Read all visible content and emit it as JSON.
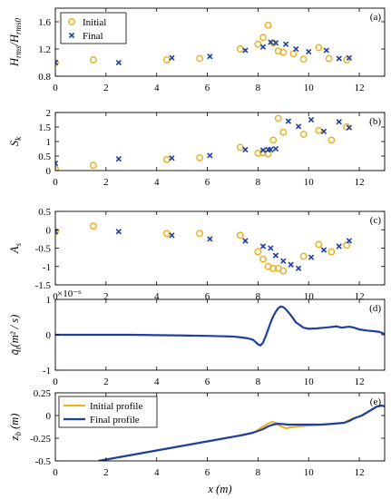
{
  "colors": {
    "initial": "#EDB120",
    "final": "#1F3FA0",
    "axis": "#000000"
  },
  "chart_data": [
    {
      "type": "scatter",
      "panel_label": "(a)",
      "ylabel": "H_rms/H_rms0",
      "xlabel": "",
      "xlim": [
        0,
        13
      ],
      "ylim": [
        0.8,
        1.8
      ],
      "xticks": [
        0,
        2,
        4,
        6,
        8,
        10,
        12
      ],
      "yticks": [
        0.8,
        1.2,
        1.6
      ],
      "ytick_labels": [
        "0.8",
        "1.2",
        "1.6"
      ],
      "legend": "top-left",
      "series": [
        {
          "name": "Initial",
          "marker": "circle",
          "x": [
            0,
            1.5,
            4.4,
            5.7,
            7.3,
            8.0,
            8.2,
            8.4,
            8.6,
            8.8,
            9.0,
            9.4,
            9.8,
            10.4,
            10.8,
            11.5
          ],
          "y": [
            1.0,
            1.04,
            1.04,
            1.06,
            1.2,
            1.27,
            1.37,
            1.55,
            1.29,
            1.17,
            1.15,
            1.13,
            1.05,
            1.22,
            1.06,
            1.04
          ]
        },
        {
          "name": "Final",
          "marker": "x",
          "x": [
            0,
            2.5,
            4.6,
            6.1,
            7.5,
            8.2,
            8.5,
            8.7,
            9.1,
            9.5,
            10.0,
            10.7,
            11.2,
            11.6
          ],
          "y": [
            1.0,
            1.0,
            1.07,
            1.09,
            1.18,
            1.23,
            1.3,
            1.29,
            1.27,
            1.2,
            1.16,
            1.18,
            1.06,
            1.07
          ]
        }
      ]
    },
    {
      "type": "scatter",
      "panel_label": "(b)",
      "ylabel": "S_k",
      "xlabel": "",
      "xlim": [
        0,
        13
      ],
      "ylim": [
        0,
        2
      ],
      "xticks": [
        0,
        2,
        4,
        6,
        8,
        10,
        12
      ],
      "yticks": [
        0,
        0.5,
        1,
        1.5,
        2
      ],
      "ytick_labels": [
        "0",
        "0.5",
        "1",
        "1.5",
        "2"
      ],
      "series": [
        {
          "name": "Initial",
          "marker": "circle",
          "x": [
            0,
            1.5,
            4.4,
            5.7,
            7.3,
            8.0,
            8.2,
            8.4,
            8.6,
            8.8,
            9.0,
            9.8,
            10.4,
            10.9,
            11.5
          ],
          "y": [
            0.05,
            0.18,
            0.38,
            0.44,
            0.8,
            0.6,
            0.62,
            0.58,
            1.05,
            1.8,
            1.32,
            1.25,
            1.38,
            1.05,
            1.5
          ]
        },
        {
          "name": "Final",
          "marker": "x",
          "x": [
            0,
            2.5,
            4.6,
            6.1,
            7.5,
            8.2,
            8.4,
            8.5,
            8.7,
            9.2,
            9.6,
            10.1,
            10.6,
            11.2,
            11.6
          ],
          "y": [
            0.25,
            0.4,
            0.43,
            0.52,
            0.72,
            0.7,
            0.72,
            0.72,
            0.75,
            1.7,
            1.52,
            1.75,
            1.35,
            1.68,
            1.48
          ]
        }
      ]
    },
    {
      "type": "scatter",
      "panel_label": "(c)",
      "ylabel": "A_s",
      "xlabel": "",
      "xlim": [
        0,
        13
      ],
      "ylim": [
        -1.5,
        0.5
      ],
      "xticks": [
        0,
        2,
        4,
        6,
        8,
        10,
        12
      ],
      "yticks": [
        -1.5,
        -1,
        -0.5,
        0,
        0.5
      ],
      "ytick_labels": [
        "-1.5",
        "-1",
        "-0.5",
        "0",
        "0.5"
      ],
      "series": [
        {
          "name": "Initial",
          "marker": "circle",
          "x": [
            0,
            1.5,
            4.4,
            5.7,
            7.3,
            8.0,
            8.2,
            8.4,
            8.6,
            8.8,
            9.0,
            9.8,
            10.4,
            10.9,
            11.5
          ],
          "y": [
            -0.05,
            0.1,
            -0.1,
            -0.1,
            -0.15,
            -0.6,
            -0.8,
            -1.0,
            -1.05,
            -1.05,
            -1.12,
            -0.72,
            -0.4,
            -0.6,
            -0.42
          ]
        },
        {
          "name": "Final",
          "marker": "x",
          "x": [
            0,
            2.5,
            4.6,
            6.1,
            7.5,
            8.2,
            8.5,
            8.7,
            9.0,
            9.3,
            9.6,
            10.1,
            10.6,
            11.2,
            11.6
          ],
          "y": [
            -0.05,
            -0.05,
            -0.15,
            -0.25,
            -0.3,
            -0.45,
            -0.5,
            -0.7,
            -0.85,
            -0.95,
            -1.05,
            -0.75,
            -0.55,
            -0.45,
            -0.3
          ]
        }
      ]
    },
    {
      "type": "line",
      "panel_label": "(d)",
      "ylabel": "q̄_t(m²/s)",
      "xlabel": "",
      "xlim": [
        0,
        13
      ],
      "ylim": [
        -1,
        1
      ],
      "yscale_note": "×10⁻⁶",
      "xticks": [
        0,
        2,
        4,
        6,
        8,
        10,
        12
      ],
      "yticks": [
        -1,
        0,
        1
      ],
      "ytick_labels": [
        "-1",
        "0",
        "1"
      ],
      "series": [
        {
          "name": "",
          "x": [
            0,
            1,
            2,
            3,
            4,
            5,
            6,
            6.5,
            7,
            7.3,
            7.6,
            7.8,
            7.9,
            8.0,
            8.1,
            8.2,
            8.3,
            8.4,
            8.5,
            8.6,
            8.7,
            8.8,
            8.9,
            9.0,
            9.1,
            9.3,
            9.5,
            9.8,
            10.0,
            10.3,
            10.6,
            10.9,
            11.1,
            11.3,
            11.5,
            11.6,
            11.8,
            12.0,
            12.3,
            12.6,
            12.8,
            13.0
          ],
          "y": [
            0.0,
            0.0,
            0.0,
            0.0,
            -0.01,
            -0.02,
            -0.03,
            -0.04,
            -0.05,
            -0.07,
            -0.1,
            -0.14,
            -0.2,
            -0.27,
            -0.3,
            -0.22,
            -0.05,
            0.15,
            0.35,
            0.52,
            0.65,
            0.75,
            0.8,
            0.78,
            0.72,
            0.55,
            0.35,
            0.2,
            0.17,
            0.18,
            0.2,
            0.22,
            0.24,
            0.2,
            0.22,
            0.23,
            0.2,
            0.15,
            0.12,
            0.1,
            0.08,
            0.02
          ]
        }
      ]
    },
    {
      "type": "line",
      "panel_label": "(e)",
      "ylabel": "z_b (m)",
      "xlabel": "x (m)",
      "xlim": [
        0,
        13
      ],
      "ylim": [
        -0.5,
        0.25
      ],
      "xticks": [
        0,
        2,
        4,
        6,
        8,
        10,
        12
      ],
      "yticks": [
        -0.5,
        -0.25,
        0,
        0.25
      ],
      "ytick_labels": [
        "-0.5",
        "-0.25",
        "0",
        "0.25"
      ],
      "legend": "top-left",
      "series": [
        {
          "name": "Initial profile",
          "x": [
            1.7,
            2.5,
            3.5,
            4.5,
            5.5,
            6.5,
            7.3,
            7.8,
            8.0,
            8.2,
            8.4,
            8.55,
            8.7,
            8.9,
            9.1,
            9.3,
            9.6,
            10.0,
            10.5,
            11.0,
            11.4,
            11.6,
            11.8,
            12.1,
            12.4,
            12.7,
            12.9,
            13.0
          ],
          "y": [
            -0.5,
            -0.46,
            -0.41,
            -0.36,
            -0.31,
            -0.26,
            -0.22,
            -0.19,
            -0.16,
            -0.12,
            -0.09,
            -0.07,
            -0.08,
            -0.12,
            -0.14,
            -0.13,
            -0.12,
            -0.11,
            -0.1,
            -0.09,
            -0.08,
            -0.05,
            -0.03,
            0.0,
            0.05,
            0.1,
            0.11,
            0.1
          ]
        },
        {
          "name": "Final profile",
          "x": [
            1.7,
            2.5,
            3.5,
            4.5,
            5.5,
            6.5,
            7.3,
            7.8,
            8.0,
            8.2,
            8.4,
            8.6,
            8.8,
            9.0,
            9.2,
            9.4,
            9.6,
            10.0,
            10.5,
            11.0,
            11.4,
            11.6,
            11.8,
            12.1,
            12.4,
            12.7,
            12.9,
            13.0
          ],
          "y": [
            -0.5,
            -0.46,
            -0.41,
            -0.36,
            -0.31,
            -0.26,
            -0.22,
            -0.19,
            -0.17,
            -0.15,
            -0.12,
            -0.1,
            -0.09,
            -0.095,
            -0.1,
            -0.1,
            -0.1,
            -0.1,
            -0.1,
            -0.09,
            -0.08,
            -0.06,
            -0.03,
            0.0,
            0.05,
            0.1,
            0.11,
            0.1
          ]
        }
      ]
    }
  ]
}
